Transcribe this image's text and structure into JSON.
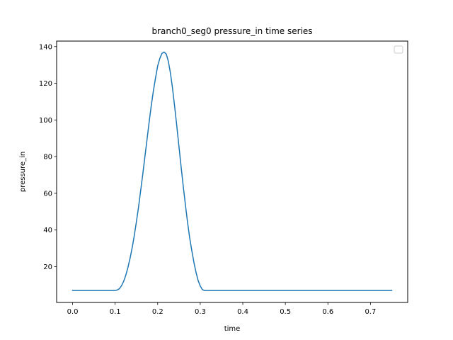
{
  "chart_data": {
    "type": "line",
    "title": "branch0_seg0 pressure_in time series",
    "xlabel": "time",
    "ylabel": "pressure_in",
    "xlim": [
      -0.0375,
      0.7875
    ],
    "ylim": [
      0.5,
      143
    ],
    "xticks": [
      "0.0",
      "0.1",
      "0.2",
      "0.3",
      "0.4",
      "0.5",
      "0.6",
      "0.7"
    ],
    "yticks": [
      "20",
      "40",
      "60",
      "80",
      "100",
      "120",
      "140"
    ],
    "grid": false,
    "legend": "top-right",
    "line_color": "#1f77b4",
    "series": [
      {
        "x": [
          0.0,
          0.02,
          0.04,
          0.06,
          0.08,
          0.1,
          0.105,
          0.11,
          0.115,
          0.12,
          0.125,
          0.13,
          0.135,
          0.14,
          0.145,
          0.15,
          0.155,
          0.16,
          0.165,
          0.17,
          0.175,
          0.18,
          0.185,
          0.19,
          0.195,
          0.2,
          0.205,
          0.21,
          0.215,
          0.22,
          0.225,
          0.23,
          0.235,
          0.24,
          0.245,
          0.25,
          0.255,
          0.26,
          0.265,
          0.27,
          0.275,
          0.28,
          0.285,
          0.29,
          0.295,
          0.3,
          0.305,
          0.31,
          0.315,
          0.32,
          0.325,
          0.33,
          0.335,
          0.34,
          0.345,
          0.35,
          0.355,
          0.36,
          0.365,
          0.37,
          0.375,
          0.4,
          0.45,
          0.5,
          0.55,
          0.6,
          0.65,
          0.7,
          0.75
        ],
        "y": [
          7,
          7,
          7,
          7,
          7,
          7,
          7.3,
          8,
          9.6,
          12,
          15.3,
          19.5,
          24.5,
          30.3,
          37,
          44.5,
          52.5,
          61.5,
          70.5,
          80,
          89.5,
          99,
          108,
          116,
          123,
          129.5,
          133.5,
          136.3,
          137,
          136,
          132,
          125.5,
          117,
          107,
          96.5,
          85.5,
          74.5,
          64,
          54,
          44.5,
          36,
          29,
          22.5,
          17,
          12.5,
          9.5,
          7.5,
          7,
          7,
          7,
          7,
          7,
          7,
          7,
          7,
          7,
          7,
          7,
          7,
          7,
          7,
          7,
          7,
          7,
          7,
          7,
          7,
          7,
          7
        ]
      }
    ]
  }
}
